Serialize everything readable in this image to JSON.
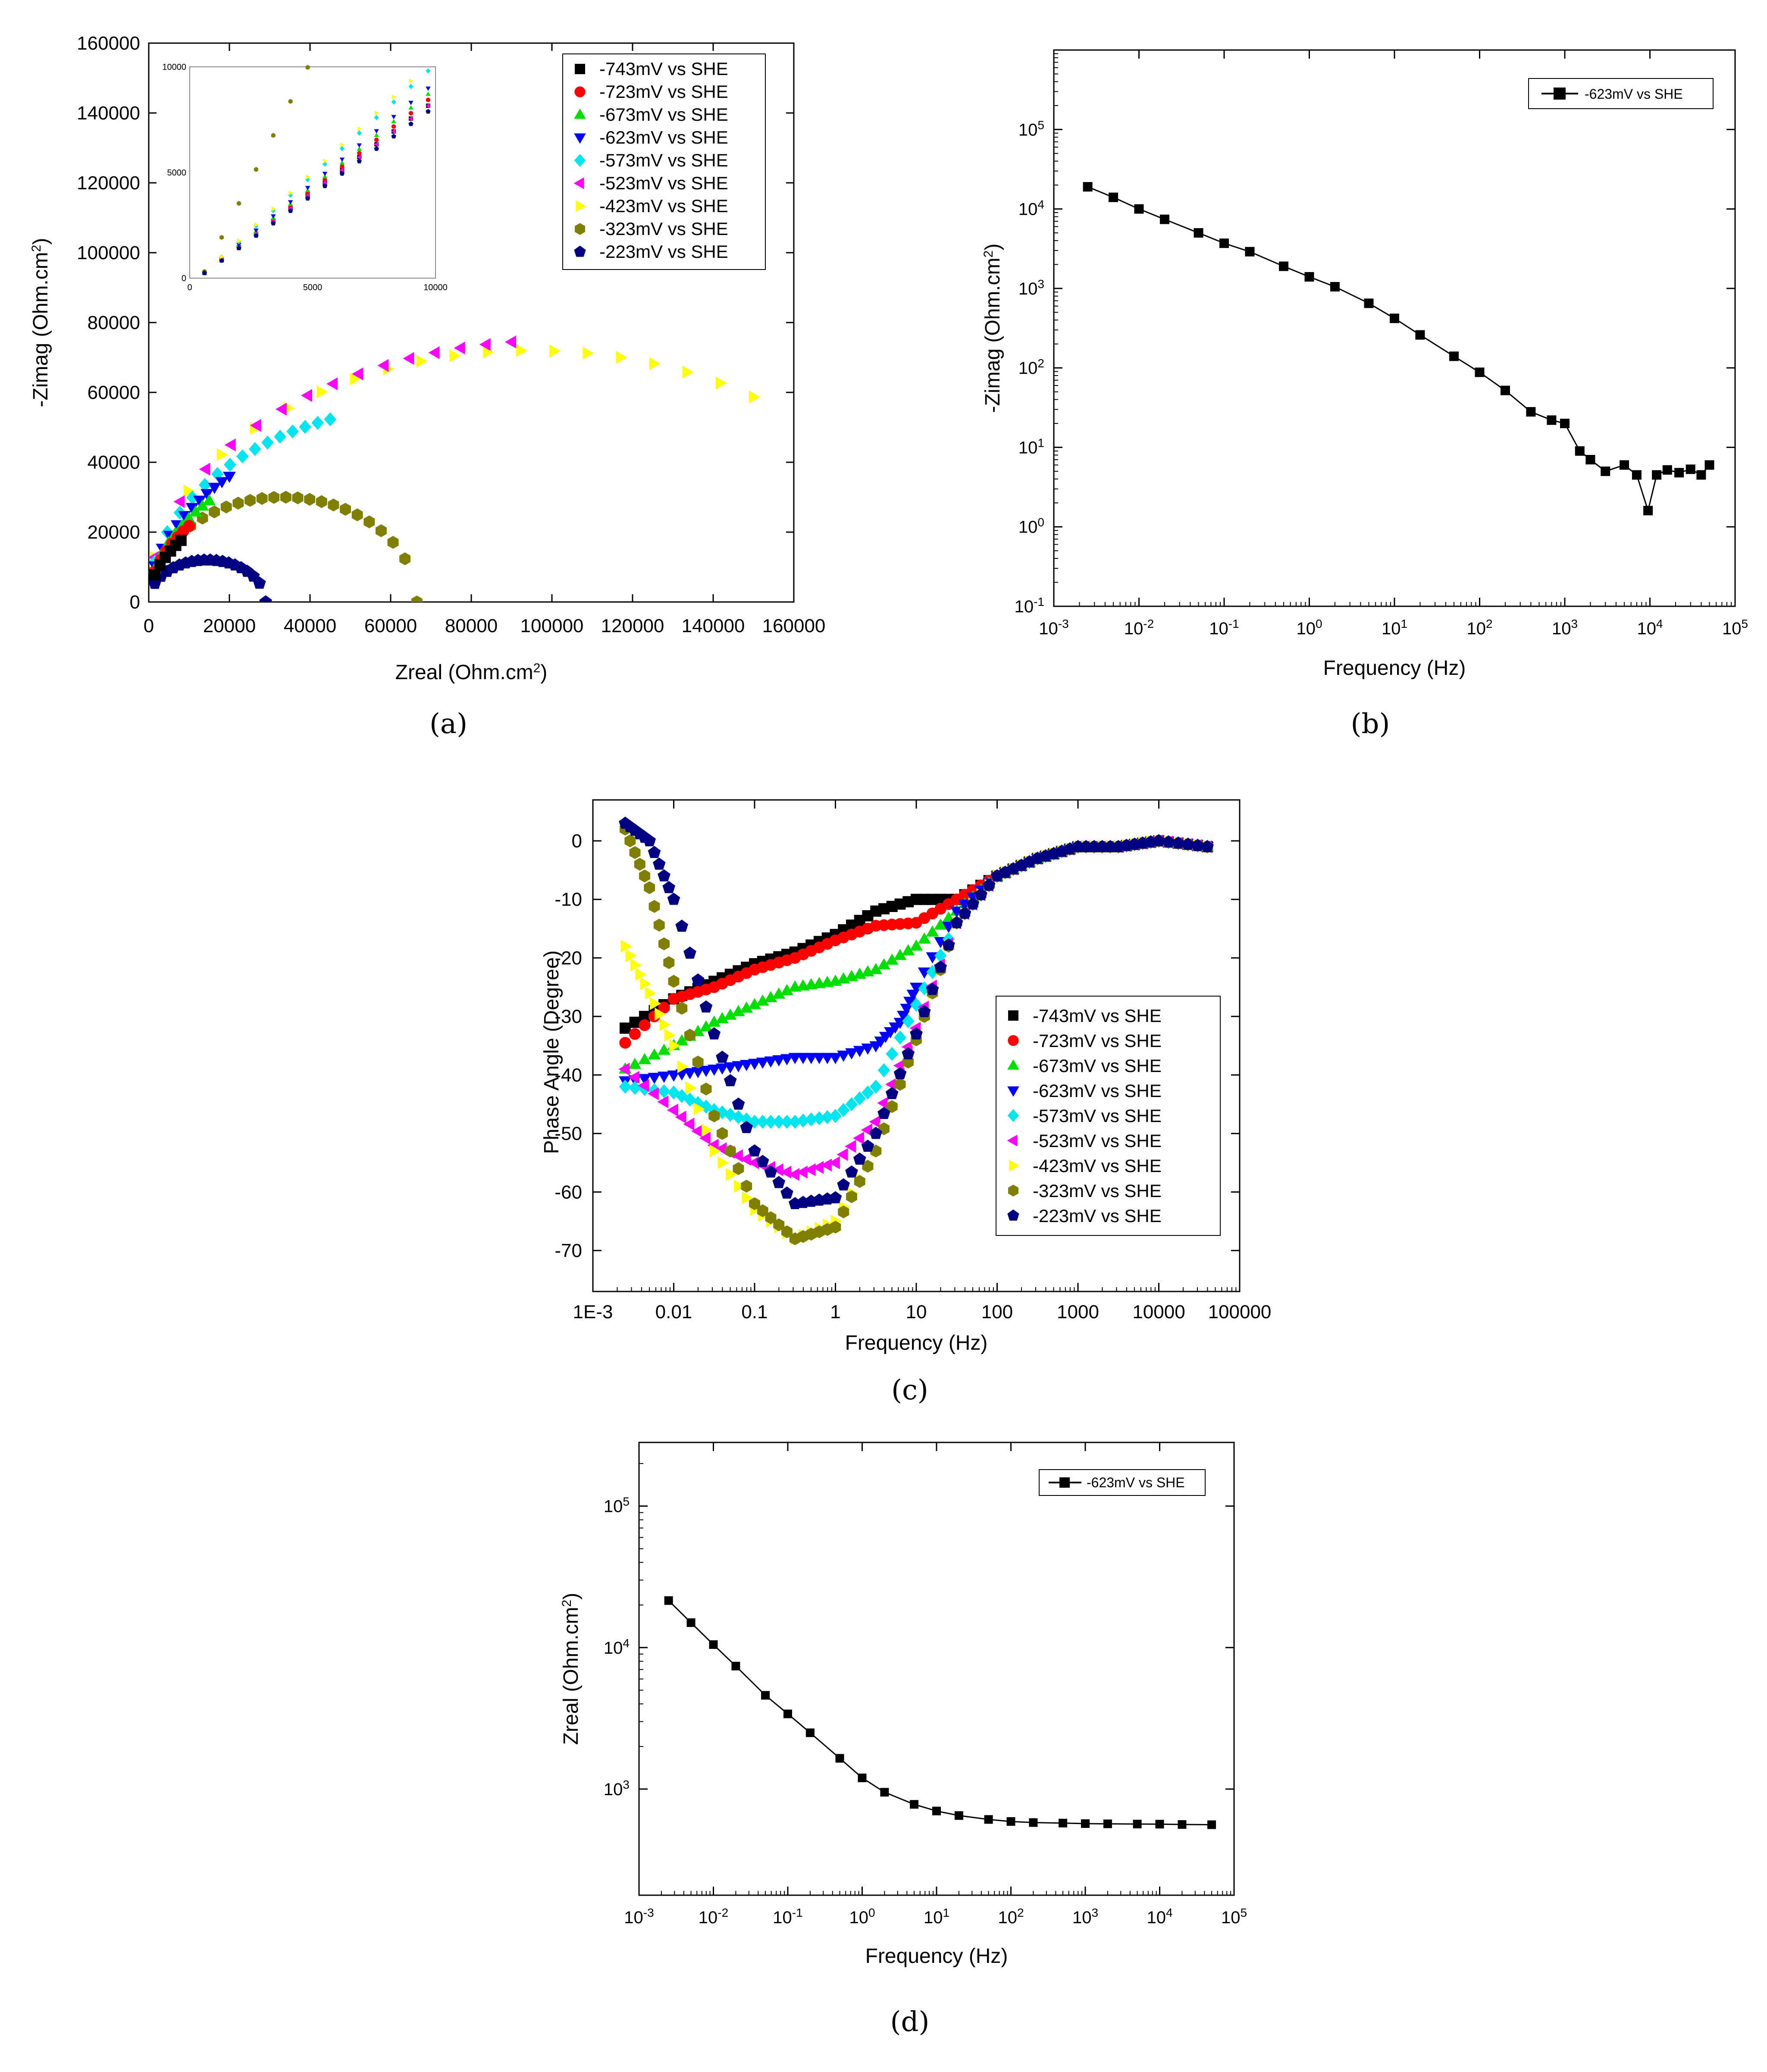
{
  "series_styles": [
    {
      "name": "-743mV vs SHE",
      "color": "#000000",
      "marker": "square"
    },
    {
      "name": "-723mV vs SHE",
      "color": "#ff0000",
      "marker": "circle"
    },
    {
      "name": "-673mV vs SHE",
      "color": "#00e000",
      "marker": "triangle-up"
    },
    {
      "name": "-623mV vs SHE",
      "color": "#0000ff",
      "marker": "triangle-down"
    },
    {
      "name": "-573mV vs SHE",
      "color": "#00e5ee",
      "marker": "diamond"
    },
    {
      "name": "-523mV vs SHE",
      "color": "#ff00ff",
      "marker": "triangle-left"
    },
    {
      "name": "-423mV vs SHE",
      "color": "#ffff00",
      "marker": "triangle-right"
    },
    {
      "name": "-323mV vs SHE",
      "color": "#808000",
      "marker": "hexagon"
    },
    {
      "name": "-223mV vs SHE",
      "color": "#000080",
      "marker": "pentagon"
    }
  ],
  "chart_data": [
    {
      "id": "a",
      "caption": "(a)",
      "type": "scatter",
      "xlabel": "Zreal (Ohm.cm²)",
      "ylabel": "-Zimag (Ohm.cm²)",
      "xlim": [
        0,
        160000
      ],
      "ylim": [
        0,
        160000
      ],
      "xticks": [
        "0",
        "20000",
        "40000",
        "60000",
        "80000",
        "100000",
        "120000",
        "140000",
        "160000"
      ],
      "yticks": [
        "0",
        "20000",
        "40000",
        "60000",
        "80000",
        "100000",
        "120000",
        "140000",
        "160000"
      ],
      "legend_position": "top-right",
      "inset": {
        "xlim": [
          0,
          10000
        ],
        "ylim": [
          0,
          10000
        ],
        "xticks": [
          "0",
          "5000",
          "10000"
        ],
        "yticks": [
          "0",
          "5000",
          "10000"
        ]
      }
    },
    {
      "id": "b",
      "caption": "(b)",
      "type": "line",
      "xlabel": "Frequency (Hz)",
      "ylabel": "-Zimag (Ohm.cm²)",
      "x_scale": "log",
      "y_scale": "log",
      "xlim_exp": [
        -3,
        5
      ],
      "ylim_exp": [
        -1,
        6
      ],
      "xticks": [
        "10-3",
        "10-2",
        "10-1",
        "100",
        "101",
        "102",
        "103",
        "104",
        "105"
      ],
      "yticks": [
        "10-1",
        "100",
        "101",
        "102",
        "103",
        "104",
        "105"
      ],
      "legend": "-623mV vs SHE",
      "legend_position": "top-right",
      "series": [
        {
          "name": "-623mV vs SHE",
          "x": [
            0.0025,
            0.005,
            0.01,
            0.02,
            0.05,
            0.1,
            0.2,
            0.5,
            1,
            2,
            5,
            10,
            20,
            50,
            100,
            200,
            400,
            700,
            1000,
            1500,
            2000,
            3000,
            5000,
            7000,
            9500,
            12000,
            16000,
            22000,
            30000,
            40000,
            50000
          ],
          "y": [
            19000,
            14000,
            10000,
            7400,
            5000,
            3700,
            2900,
            1900,
            1400,
            1050,
            650,
            420,
            260,
            140,
            88,
            52,
            28,
            22,
            20,
            9,
            7,
            5,
            6,
            4.5,
            1.6,
            4.5,
            5.2,
            4.8,
            5.3,
            4.5,
            6
          ]
        }
      ]
    },
    {
      "id": "c",
      "caption": "(c)",
      "type": "scatter",
      "xlabel": "Frequency (Hz)",
      "ylabel": "Phase Angle (Degree)",
      "x_scale": "log",
      "xlim_exp": [
        -3,
        5
      ],
      "ylim": [
        -77,
        7
      ],
      "xticks": [
        "1E-3",
        "0.01",
        "0.1",
        "1",
        "10",
        "100",
        "1000",
        "10000",
        "100000"
      ],
      "yticks": [
        "0",
        "-10",
        "-20",
        "-30",
        "-40",
        "-50",
        "-60",
        "-70"
      ],
      "legend_position": "right",
      "series": [
        {
          "name": "-743mV vs SHE",
          "x_log": [
            -2.6,
            -2,
            -1.5,
            -1,
            -0.5,
            0,
            0.5,
            1,
            1.5,
            2,
            2.5,
            3,
            3.5,
            4,
            4.6
          ],
          "y": [
            -32,
            -27,
            -24,
            -21,
            -19,
            -16,
            -12,
            -10,
            -10,
            -6,
            -3,
            -1,
            -1,
            0,
            -1
          ]
        },
        {
          "name": "-723mV vs SHE",
          "x_log": [
            -2.6,
            -2,
            -1.5,
            -1,
            -0.5,
            0,
            0.5,
            1,
            1.5,
            2,
            2.5,
            3,
            3.5,
            4,
            4.6
          ],
          "y": [
            -34.5,
            -27,
            -25,
            -22,
            -20,
            -17,
            -14.5,
            -14,
            -10,
            -6,
            -3,
            -1,
            -1,
            0,
            -1
          ]
        },
        {
          "name": "-673mV vs SHE",
          "x_log": [
            -2.6,
            -2,
            -1.5,
            -1,
            -0.5,
            0,
            0.5,
            1,
            1.5,
            2,
            2.5,
            3,
            3.5,
            4,
            4.6
          ],
          "y": [
            -39,
            -35,
            -31,
            -28,
            -25,
            -24,
            -22,
            -18,
            -12,
            -6,
            -3,
            -1,
            -1,
            0,
            -1
          ]
        },
        {
          "name": "-623mV vs SHE",
          "x_log": [
            -2.6,
            -2,
            -1.5,
            -1,
            -0.5,
            0,
            0.5,
            0.8,
            1,
            1.5,
            2,
            2.5,
            3,
            3.5,
            4,
            4.6
          ],
          "y": [
            -41,
            -40,
            -39,
            -38,
            -37,
            -37,
            -35,
            -31,
            -25,
            -12,
            -6,
            -3,
            -1,
            -1,
            0,
            -1
          ]
        },
        {
          "name": "-573mV vs SHE",
          "x_log": [
            -2.6,
            -2,
            -1.5,
            -1,
            -0.5,
            0,
            0.5,
            1,
            1.5,
            2,
            2.5,
            3,
            3.5,
            4,
            4.6
          ],
          "y": [
            -42,
            -43,
            -46,
            -48,
            -48,
            -47,
            -42,
            -28,
            -14,
            -6,
            -3,
            -1,
            -1,
            0,
            -1
          ]
        },
        {
          "name": "-523mV vs SHE",
          "x_log": [
            -2.6,
            -2,
            -1.5,
            -1,
            -0.5,
            0,
            0.5,
            1,
            1.5,
            2,
            2.5,
            3,
            3.5,
            4,
            4.6
          ],
          "y": [
            -39,
            -46,
            -52,
            -55,
            -57,
            -55,
            -48,
            -32,
            -14,
            -6,
            -3,
            -1,
            -1,
            0,
            -1
          ]
        },
        {
          "name": "-423mV vs SHE",
          "x_log": [
            -2.6,
            -2.3,
            -2,
            -1.5,
            -1,
            -0.5,
            0,
            0.5,
            1,
            1.5,
            2,
            2.5,
            3,
            3.5,
            4,
            4.6
          ],
          "y": [
            -18,
            -26,
            -35,
            -53,
            -63,
            -68,
            -65,
            -53,
            -34,
            -14,
            -6,
            -3,
            -1,
            -1,
            0,
            -1
          ]
        },
        {
          "name": "-323mV vs SHE",
          "x_log": [
            -2.6,
            -2.3,
            -2,
            -1.5,
            -1,
            -0.5,
            0,
            0.5,
            1,
            1.5,
            2,
            2.5,
            3,
            3.5,
            4,
            4.6
          ],
          "y": [
            2,
            -8,
            -24,
            -47,
            -62,
            -68,
            -66,
            -53,
            -34,
            -14,
            -6,
            -3,
            -1,
            -1,
            0,
            -1
          ]
        },
        {
          "name": "-223mV vs SHE",
          "x_log": [
            -2.6,
            -2.3,
            -2,
            -1.5,
            -1,
            -0.5,
            0,
            0.5,
            1,
            1.5,
            2,
            2.5,
            3,
            3.5,
            4,
            4.6
          ],
          "y": [
            3,
            0,
            -10,
            -33,
            -53,
            -62,
            -61,
            -50,
            -33,
            -14,
            -6,
            -3,
            -1,
            -1,
            0,
            -1
          ]
        }
      ]
    },
    {
      "id": "d",
      "caption": "(d)",
      "type": "line",
      "xlabel": "Frequency (Hz)",
      "ylabel": "Zreal (Ohm.cm²)",
      "x_scale": "log",
      "y_scale": "log",
      "xlim_exp": [
        -3,
        5
      ],
      "ylim_exp": [
        2.25,
        5.45
      ],
      "xticks": [
        "10-3",
        "10-2",
        "10-1",
        "100",
        "101",
        "102",
        "103",
        "104",
        "105"
      ],
      "yticks": [
        "103",
        "104",
        "105"
      ],
      "legend": "-623mV vs SHE",
      "legend_position": "top-right",
      "series": [
        {
          "name": "-623mV vs SHE",
          "x": [
            0.0025,
            0.005,
            0.01,
            0.02,
            0.05,
            0.1,
            0.2,
            0.5,
            1,
            2,
            5,
            10,
            20,
            50,
            100,
            200,
            500,
            1000,
            2000,
            5000,
            10000,
            20000,
            50000
          ],
          "y": [
            21500,
            15000,
            10500,
            7400,
            4600,
            3400,
            2500,
            1650,
            1200,
            950,
            780,
            700,
            650,
            610,
            590,
            580,
            575,
            570,
            568,
            566,
            565,
            562,
            560
          ]
        }
      ]
    }
  ]
}
